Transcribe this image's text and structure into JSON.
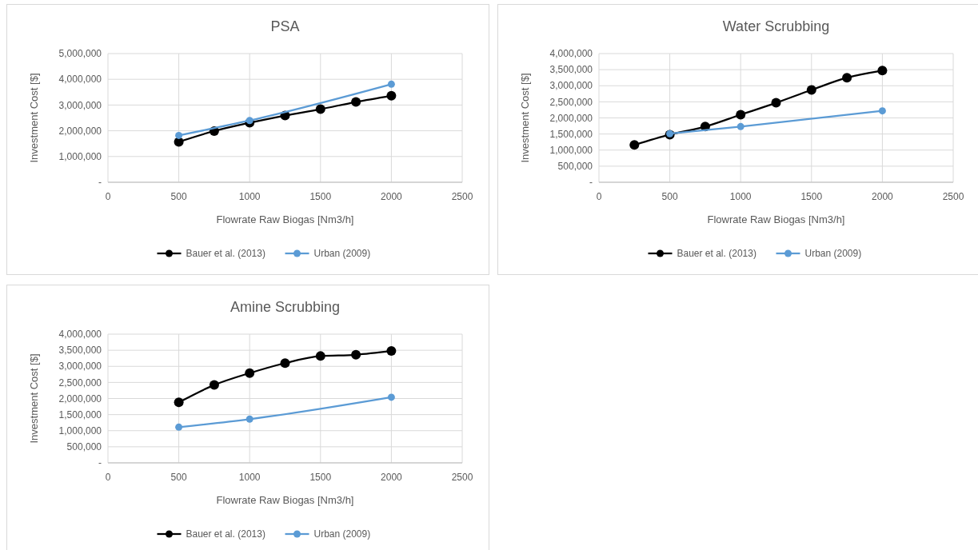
{
  "chart_data": [
    {
      "type": "line",
      "title": "PSA",
      "xlabel": "Flowrate Raw Biogas [Nm3/h]",
      "ylabel": "Investment Cost [$]",
      "xlim": [
        0,
        2500
      ],
      "xticks": [
        0,
        500,
        1000,
        1500,
        2000,
        2500
      ],
      "ylim": [
        0,
        5000000
      ],
      "yticks": [
        {
          "value": 0,
          "label": "-"
        },
        {
          "value": 1000000,
          "label": "1,000,000"
        },
        {
          "value": 2000000,
          "label": "2,000,000"
        },
        {
          "value": 3000000,
          "label": "3,000,000"
        },
        {
          "value": 4000000,
          "label": "4,000,000"
        },
        {
          "value": 5000000,
          "label": "5,000,000"
        }
      ],
      "grid": true,
      "legend": "bottom",
      "marker": "circle",
      "series": [
        {
          "name": "Bauer et al. (2013)",
          "color": "#000000",
          "x": [
            500,
            750,
            1000,
            1250,
            1500,
            1750,
            2000
          ],
          "values": [
            1570000,
            1990000,
            2310000,
            2590000,
            2840000,
            3120000,
            3360000
          ]
        },
        {
          "name": "Urban (2009)",
          "color": "#5b9bd5",
          "x": [
            500,
            1000,
            2000
          ],
          "values": [
            1820000,
            2400000,
            3810000
          ]
        }
      ]
    },
    {
      "type": "line",
      "title": "Water Scrubbing",
      "xlabel": "Flowrate Raw Biogas [Nm3/h]",
      "ylabel": "Investment Cost [$]",
      "xlim": [
        0,
        2500
      ],
      "xticks": [
        0,
        500,
        1000,
        1500,
        2000,
        2500
      ],
      "ylim": [
        0,
        4000000
      ],
      "yticks": [
        {
          "value": 0,
          "label": "-"
        },
        {
          "value": 500000,
          "label": "500,000"
        },
        {
          "value": 1000000,
          "label": "1,000,000"
        },
        {
          "value": 1500000,
          "label": "1,500,000"
        },
        {
          "value": 2000000,
          "label": "2,000,000"
        },
        {
          "value": 2500000,
          "label": "2,500,000"
        },
        {
          "value": 3000000,
          "label": "3,000,000"
        },
        {
          "value": 3500000,
          "label": "3,500,000"
        },
        {
          "value": 4000000,
          "label": "4,000,000"
        }
      ],
      "grid": true,
      "legend": "bottom",
      "marker": "circle",
      "series": [
        {
          "name": "Bauer et al. (2013)",
          "color": "#000000",
          "x": [
            250,
            500,
            750,
            1000,
            1250,
            1500,
            1750,
            2000
          ],
          "values": [
            1160000,
            1480000,
            1730000,
            2100000,
            2470000,
            2870000,
            3250000,
            3470000
          ]
        },
        {
          "name": "Urban (2009)",
          "color": "#5b9bd5",
          "x": [
            500,
            1000,
            2000
          ],
          "values": [
            1510000,
            1730000,
            2220000
          ]
        }
      ]
    },
    {
      "type": "line",
      "title": "Amine Scrubbing",
      "xlabel": "Flowrate Raw Biogas [Nm3/h]",
      "ylabel": "Investment Cost [$]",
      "xlim": [
        0,
        2500
      ],
      "xticks": [
        0,
        500,
        1000,
        1500,
        2000,
        2500
      ],
      "ylim": [
        0,
        4000000
      ],
      "yticks": [
        {
          "value": 0,
          "label": "-"
        },
        {
          "value": 500000,
          "label": "500,000"
        },
        {
          "value": 1000000,
          "label": "1,000,000"
        },
        {
          "value": 1500000,
          "label": "1,500,000"
        },
        {
          "value": 2000000,
          "label": "2,000,000"
        },
        {
          "value": 2500000,
          "label": "2,500,000"
        },
        {
          "value": 3000000,
          "label": "3,000,000"
        },
        {
          "value": 3500000,
          "label": "3,500,000"
        },
        {
          "value": 4000000,
          "label": "4,000,000"
        }
      ],
      "grid": true,
      "legend": "bottom",
      "marker": "circle",
      "series": [
        {
          "name": "Bauer et al. (2013)",
          "color": "#000000",
          "x": [
            500,
            750,
            1000,
            1250,
            1500,
            1750,
            2000
          ],
          "values": [
            1880000,
            2420000,
            2790000,
            3100000,
            3320000,
            3360000,
            3480000
          ]
        },
        {
          "name": "Urban (2009)",
          "color": "#5b9bd5",
          "x": [
            500,
            1000,
            2000
          ],
          "values": [
            1110000,
            1360000,
            2040000
          ]
        }
      ]
    }
  ]
}
